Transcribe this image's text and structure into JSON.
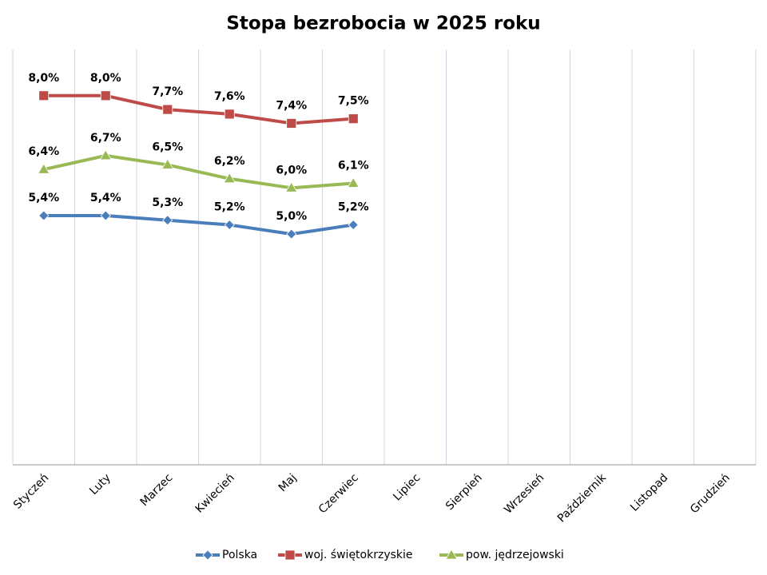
{
  "chart_data": {
    "type": "line",
    "title": "Stopa bezrobocia w 2025 roku",
    "categories": [
      "Styczeń",
      "Luty",
      "Marzec",
      "Kwiecień",
      "Maj",
      "Czerwiec",
      "Lipiec",
      "Sierpień",
      "Wrzesień",
      "Październik",
      "Listopad",
      "Grudzień"
    ],
    "ylim": [
      0,
      9
    ],
    "grid": true,
    "legend": "bottom",
    "series": [
      {
        "name": "Polska",
        "color": "#4a7ebb",
        "marker": "diamond",
        "values": [
          5.4,
          5.4,
          5.3,
          5.2,
          5.0,
          5.2,
          null,
          null,
          null,
          null,
          null,
          null
        ],
        "value_labels": [
          "5,4%",
          "5,4%",
          "5,3%",
          "5,2%",
          "5,0%",
          "5,2%",
          null,
          null,
          null,
          null,
          null,
          null
        ]
      },
      {
        "name": "woj. świętokrzyskie",
        "color": "#be4b48",
        "marker": "square",
        "values": [
          8.0,
          8.0,
          7.7,
          7.6,
          7.4,
          7.5,
          null,
          null,
          null,
          null,
          null,
          null
        ],
        "value_labels": [
          "8,0%",
          "8,0%",
          "7,7%",
          "7,6%",
          "7,4%",
          "7,5%",
          null,
          null,
          null,
          null,
          null,
          null
        ]
      },
      {
        "name": "pow. jędrzejowski",
        "color": "#98b954",
        "marker": "triangle",
        "values": [
          6.4,
          6.7,
          6.5,
          6.2,
          6.0,
          6.1,
          null,
          null,
          null,
          null,
          null,
          null
        ],
        "value_labels": [
          "6,4%",
          "6,7%",
          "6,5%",
          "6,2%",
          "6,0%",
          "6,1%",
          null,
          null,
          null,
          null,
          null,
          null
        ]
      }
    ]
  }
}
